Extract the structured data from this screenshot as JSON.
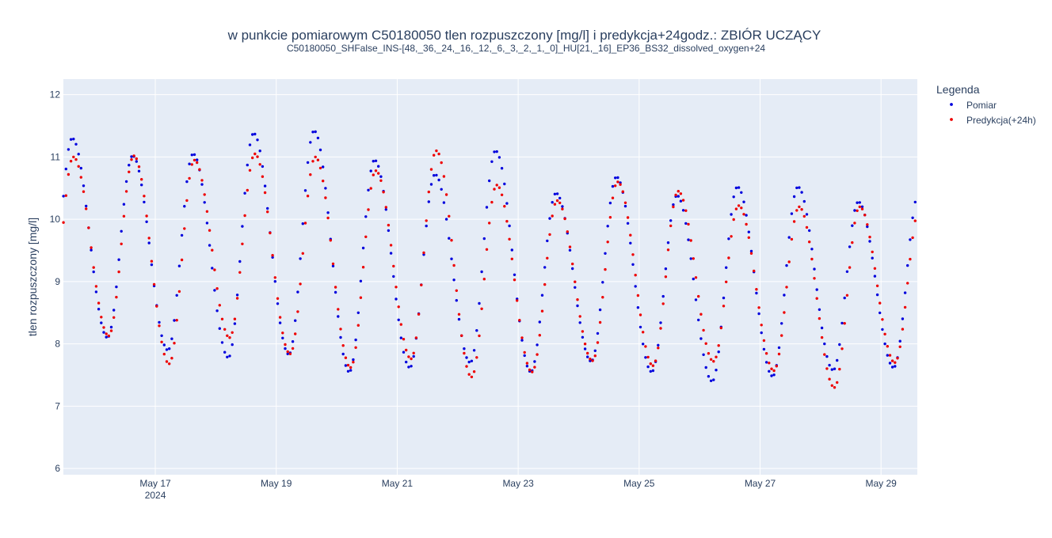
{
  "chart_data": {
    "type": "scatter",
    "title": "w punkcie pomiarowym C50180050 tlen rozpuszczony [mg/l] i predykcja+24godz.: ZBIÓR UCZĄCY",
    "subtitle": "C50180050_SHFalse_INS-[48,_36,_24,_16,_12,_6,_3,_2,_1,_0]_HU[21,_16]_EP36_BS32_dissolved_oxygen+24",
    "xlabel": "",
    "ylabel": "tlen rozpuszczony [mg/l]",
    "xlim_days": [
      15.48,
      29.6
    ],
    "ylim": [
      5.9,
      12.25
    ],
    "yticks": [
      6,
      7,
      8,
      9,
      10,
      11,
      12
    ],
    "xticks": [
      {
        "day": 17,
        "label": "May 17",
        "sublabel": "2024"
      },
      {
        "day": 19,
        "label": "May 19",
        "sublabel": ""
      },
      {
        "day": 21,
        "label": "May 21",
        "sublabel": ""
      },
      {
        "day": 23,
        "label": "May 23",
        "sublabel": ""
      },
      {
        "day": 25,
        "label": "May 25",
        "sublabel": ""
      },
      {
        "day": 27,
        "label": "May 27",
        "sublabel": ""
      },
      {
        "day": 29,
        "label": "May 29",
        "sublabel": ""
      }
    ],
    "grid": true,
    "legend": {
      "title": "Legenda",
      "position": "right"
    },
    "series": [
      {
        "name": "Pomiar",
        "color": "#0000dd",
        "daily": [
          {
            "min": 7.82,
            "max": 11.3
          },
          {
            "min": 8.1,
            "max": 11.02
          },
          {
            "min": 7.9,
            "max": 11.05
          },
          {
            "min": 7.78,
            "max": 11.38
          },
          {
            "min": 7.83,
            "max": 11.42
          },
          {
            "min": 7.55,
            "max": 10.95
          },
          {
            "min": 7.62,
            "max": 10.72
          },
          {
            "min": 7.7,
            "max": 11.1
          },
          {
            "min": 7.55,
            "max": 10.42
          },
          {
            "min": 7.72,
            "max": 10.68
          },
          {
            "min": 7.55,
            "max": 10.38
          },
          {
            "min": 7.4,
            "max": 10.52
          },
          {
            "min": 7.48,
            "max": 10.52
          },
          {
            "min": 7.58,
            "max": 10.28
          },
          {
            "min": 7.62,
            "max": 10.42
          }
        ]
      },
      {
        "name": "Predykcja(+24h)",
        "color": "#ee0000",
        "daily": [
          {
            "min": 7.87,
            "max": 11.0
          },
          {
            "min": 8.13,
            "max": 11.02
          },
          {
            "min": 7.68,
            "max": 10.95
          },
          {
            "min": 8.1,
            "max": 11.05
          },
          {
            "min": 7.84,
            "max": 11.0
          },
          {
            "min": 7.62,
            "max": 10.78
          },
          {
            "min": 7.76,
            "max": 11.1
          },
          {
            "min": 7.47,
            "max": 10.55
          },
          {
            "min": 7.55,
            "max": 10.3
          },
          {
            "min": 7.73,
            "max": 10.6
          },
          {
            "min": 7.65,
            "max": 10.45
          },
          {
            "min": 7.72,
            "max": 10.22
          },
          {
            "min": 7.57,
            "max": 10.2
          },
          {
            "min": 7.3,
            "max": 10.2
          },
          {
            "min": 7.7,
            "max": 10.2
          }
        ]
      }
    ]
  }
}
